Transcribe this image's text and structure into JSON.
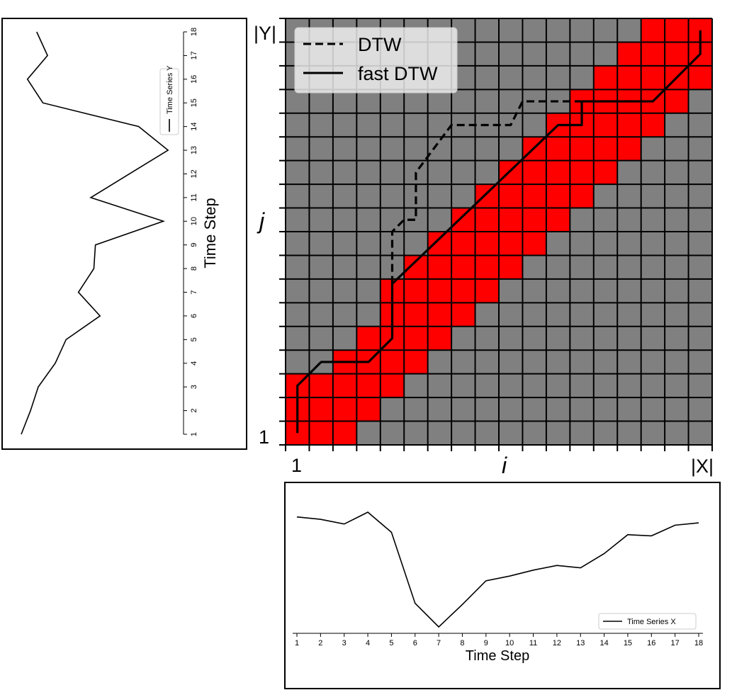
{
  "chart_data": [
    {
      "type": "heatmap",
      "grid_cols": 18,
      "grid_rows": 18,
      "band_cells": [
        [
          1,
          1
        ],
        [
          2,
          1
        ],
        [
          3,
          1
        ],
        [
          1,
          2
        ],
        [
          2,
          2
        ],
        [
          3,
          2
        ],
        [
          4,
          2
        ],
        [
          1,
          3
        ],
        [
          2,
          3
        ],
        [
          3,
          3
        ],
        [
          4,
          3
        ],
        [
          5,
          3
        ],
        [
          3,
          4
        ],
        [
          4,
          4
        ],
        [
          5,
          4
        ],
        [
          6,
          4
        ],
        [
          4,
          5
        ],
        [
          5,
          5
        ],
        [
          6,
          5
        ],
        [
          7,
          5
        ],
        [
          5,
          6
        ],
        [
          6,
          6
        ],
        [
          7,
          6
        ],
        [
          8,
          6
        ],
        [
          5,
          7
        ],
        [
          6,
          7
        ],
        [
          7,
          7
        ],
        [
          8,
          7
        ],
        [
          9,
          7
        ],
        [
          6,
          8
        ],
        [
          7,
          8
        ],
        [
          8,
          8
        ],
        [
          9,
          8
        ],
        [
          10,
          8
        ],
        [
          7,
          9
        ],
        [
          8,
          9
        ],
        [
          9,
          9
        ],
        [
          10,
          9
        ],
        [
          11,
          9
        ],
        [
          8,
          10
        ],
        [
          9,
          10
        ],
        [
          10,
          10
        ],
        [
          11,
          10
        ],
        [
          12,
          10
        ],
        [
          9,
          11
        ],
        [
          10,
          11
        ],
        [
          11,
          11
        ],
        [
          12,
          11
        ],
        [
          13,
          11
        ],
        [
          10,
          12
        ],
        [
          11,
          12
        ],
        [
          12,
          12
        ],
        [
          13,
          12
        ],
        [
          14,
          12
        ],
        [
          11,
          13
        ],
        [
          12,
          13
        ],
        [
          13,
          13
        ],
        [
          14,
          13
        ],
        [
          15,
          13
        ],
        [
          12,
          14
        ],
        [
          13,
          14
        ],
        [
          14,
          14
        ],
        [
          15,
          14
        ],
        [
          16,
          14
        ],
        [
          13,
          15
        ],
        [
          14,
          15
        ],
        [
          15,
          15
        ],
        [
          16,
          15
        ],
        [
          17,
          15
        ],
        [
          14,
          16
        ],
        [
          15,
          16
        ],
        [
          16,
          16
        ],
        [
          17,
          16
        ],
        [
          18,
          16
        ],
        [
          15,
          17
        ],
        [
          16,
          17
        ],
        [
          17,
          17
        ],
        [
          18,
          17
        ],
        [
          16,
          18
        ],
        [
          17,
          18
        ],
        [
          18,
          18
        ]
      ],
      "series": [
        {
          "name": "DTW",
          "style": "dashed",
          "path": [
            [
              5,
              7.3
            ],
            [
              5,
              9.5
            ],
            [
              5.5,
              10
            ],
            [
              6,
              10
            ],
            [
              6,
              12
            ],
            [
              7.5,
              14
            ],
            [
              10,
              14
            ],
            [
              10.5,
              15
            ],
            [
              13,
              15
            ]
          ]
        },
        {
          "name": "fast DTW",
          "style": "solid",
          "path": [
            [
              1,
              1
            ],
            [
              1,
              3
            ],
            [
              2,
              4
            ],
            [
              4,
              4
            ],
            [
              5,
              5
            ],
            [
              5,
              7.3
            ],
            [
              12,
              14
            ],
            [
              13,
              14
            ],
            [
              13,
              15
            ],
            [
              16,
              15
            ],
            [
              18,
              17
            ],
            [
              18,
              18
            ]
          ]
        }
      ],
      "labels": {
        "top_left": "|Y|",
        "bottom_left": "1",
        "left_axis": "j",
        "x_start": "1",
        "x_axis": "i",
        "x_end": "|X|"
      },
      "legend_position": "top-left",
      "colors": {
        "band": "#ff0000",
        "background": "#808080",
        "grid": "#000000",
        "line": "#000000"
      }
    },
    {
      "type": "line",
      "orientation": "vertical",
      "axis_label": "Time Step",
      "ticks": [
        1,
        2,
        3,
        4,
        5,
        6,
        7,
        8,
        9,
        10,
        11,
        12,
        13,
        14,
        15,
        16,
        17,
        18
      ],
      "series": [
        {
          "name": "Time Series Y",
          "time_step": [
            1,
            2,
            3,
            4,
            5,
            6,
            7,
            8,
            9,
            10,
            11,
            12,
            13,
            14,
            15,
            16,
            17,
            18
          ],
          "values": [
            0.0,
            0.06,
            0.11,
            0.22,
            0.29,
            0.51,
            0.37,
            0.47,
            0.48,
            0.92,
            0.45,
            0.7,
            0.95,
            0.76,
            0.14,
            0.04,
            0.17,
            0.1
          ]
        }
      ],
      "legend_position": "top-right"
    },
    {
      "type": "line",
      "xlabel": "Time Step",
      "x": [
        1,
        2,
        3,
        4,
        5,
        6,
        7,
        8,
        9,
        10,
        11,
        12,
        13,
        14,
        15,
        16,
        17,
        18
      ],
      "series": [
        {
          "name": "Time Series X",
          "values": [
            0.93,
            0.91,
            0.87,
            0.97,
            0.8,
            0.2,
            0.0,
            0.19,
            0.39,
            0.43,
            0.48,
            0.52,
            0.5,
            0.62,
            0.78,
            0.77,
            0.86,
            0.88
          ]
        }
      ],
      "legend_position": "bottom-right"
    }
  ]
}
